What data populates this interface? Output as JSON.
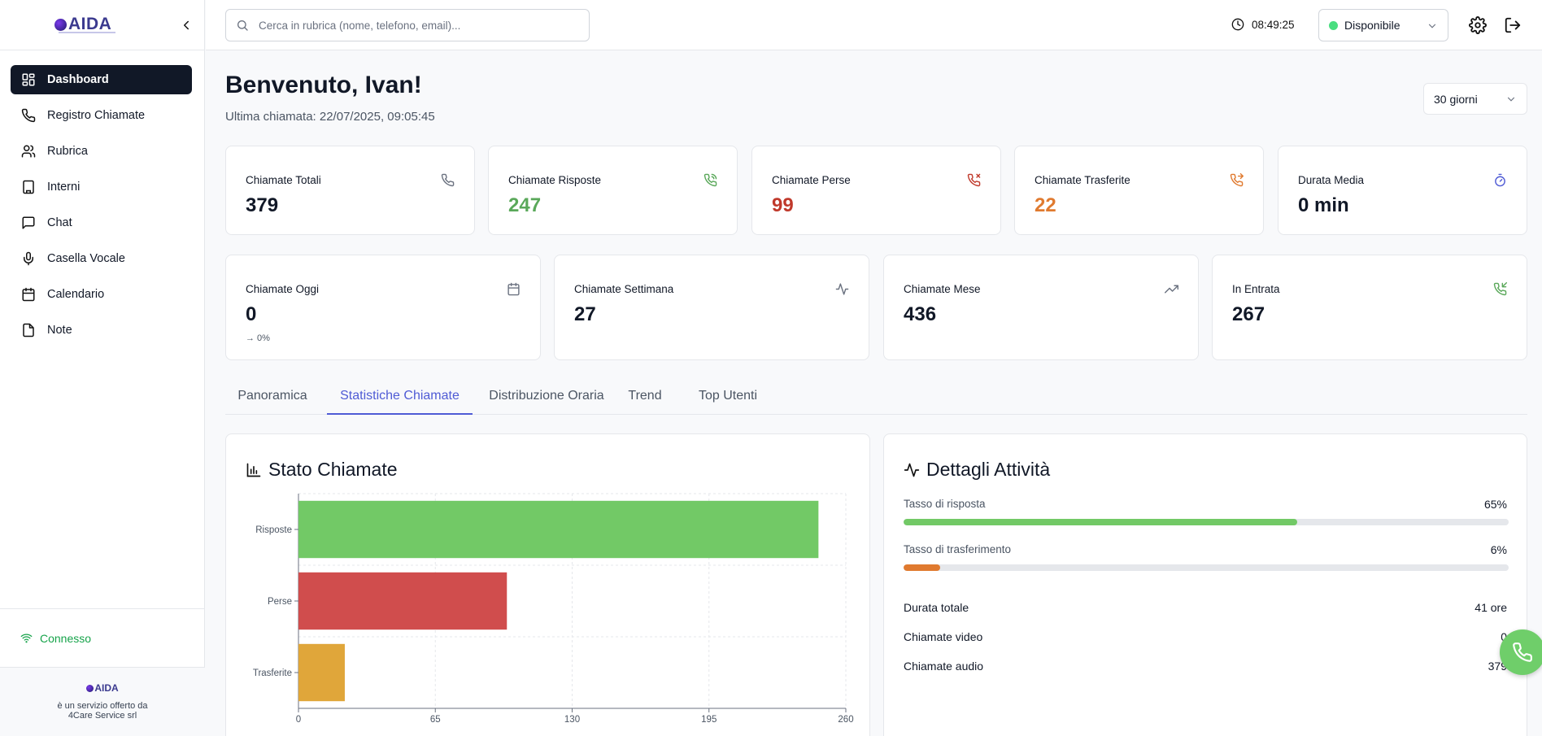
{
  "brand": {
    "name": "AIDA"
  },
  "sidebar": {
    "items": [
      {
        "label": "Dashboard",
        "icon": "grid-icon",
        "active": true
      },
      {
        "label": "Registro Chiamate",
        "icon": "phone-icon"
      },
      {
        "label": "Rubrica",
        "icon": "users-icon"
      },
      {
        "label": "Interni",
        "icon": "building-icon"
      },
      {
        "label": "Chat",
        "icon": "chat-icon"
      },
      {
        "label": "Casella Vocale",
        "icon": "mic-icon"
      },
      {
        "label": "Calendario",
        "icon": "calendar-icon"
      },
      {
        "label": "Note",
        "icon": "file-icon"
      }
    ],
    "status": "Connesso",
    "footer": {
      "logo": "AIDA",
      "line1": "è un servizio offerto da",
      "line2": "4Care Service srl"
    }
  },
  "topbar": {
    "search_placeholder": "Cerca in rubrica (nome, telefono, email)...",
    "time": "08:49:25",
    "status": "Disponibile"
  },
  "header": {
    "title": "Benvenuto, Ivan!",
    "subtitle": "Ultima chiamata: 22/07/2025, 09:05:45",
    "period": "30 giorni"
  },
  "stats_row1": [
    {
      "label": "Chiamate Totali",
      "value": "379",
      "color": "#111827",
      "icon": "phone-icon"
    },
    {
      "label": "Chiamate Risposte",
      "value": "247",
      "color": "#5aa85a",
      "icon": "phone-call-icon"
    },
    {
      "label": "Chiamate Perse",
      "value": "99",
      "color": "#c0392b",
      "icon": "phone-missed-icon"
    },
    {
      "label": "Chiamate Trasferite",
      "value": "22",
      "color": "#e07a2f",
      "icon": "phone-forwarded-icon"
    },
    {
      "label": "Durata Media",
      "value": "0 min",
      "color": "#111827",
      "icon": "timer-icon"
    }
  ],
  "stats_row2": [
    {
      "label": "Chiamate Oggi",
      "value": "0",
      "small": "→ 0%",
      "icon": "calendar-icon"
    },
    {
      "label": "Chiamate Settimana",
      "value": "27",
      "icon": "activity-icon"
    },
    {
      "label": "Chiamate Mese",
      "value": "436",
      "icon": "trending-up-icon"
    },
    {
      "label": "In Entrata",
      "value": "267",
      "icon": "phone-incoming-icon"
    }
  ],
  "tabs": [
    {
      "label": "Panoramica"
    },
    {
      "label": "Statistiche Chiamate",
      "active": true
    },
    {
      "label": "Distribuzione Oraria"
    },
    {
      "label": "Trend"
    },
    {
      "label": "Top Utenti"
    }
  ],
  "chart_panel": {
    "title": "Stato Chiamate"
  },
  "chart_data": {
    "type": "bar",
    "orientation": "horizontal",
    "categories": [
      "Risposte",
      "Perse",
      "Trasferite"
    ],
    "values": [
      247,
      99,
      22
    ],
    "colors": [
      "#72c966",
      "#d04d4d",
      "#e0a63a"
    ],
    "xlim": [
      0,
      260
    ],
    "xticks": [
      0,
      65,
      130,
      195,
      260
    ],
    "grid": true
  },
  "activity_panel": {
    "title": "Dettagli Attività",
    "progress": [
      {
        "label": "Tasso di risposta",
        "value": "65%",
        "fraction": 0.65,
        "color": "#72c966"
      },
      {
        "label": "Tasso di trasferimento",
        "value": "6%",
        "fraction": 0.06,
        "color": "#e07a2f"
      }
    ],
    "stats": [
      {
        "label": "Durata totale",
        "value": "41 ore"
      },
      {
        "label": "Chiamate video",
        "value": "0"
      },
      {
        "label": "Chiamate audio",
        "value": "379"
      }
    ]
  }
}
